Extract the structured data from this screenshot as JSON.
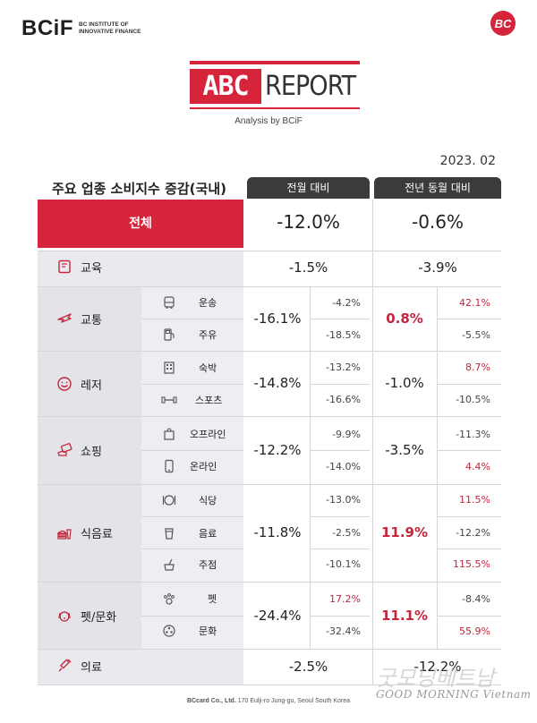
{
  "brand": {
    "logo": "BCiF",
    "sub": "BC INSTITUTE OF INNOVATIVE FINANCE"
  },
  "bc_logo": "BC",
  "report": {
    "abc": "ABC",
    "word": "REPORT",
    "analysis": "Analysis by BCiF"
  },
  "date": "2023. 02",
  "table": {
    "title": "주요 업종 소비지수 증감(국내)",
    "col_mom": "전월 대비",
    "col_yoy": "전년 동월 대비",
    "total": {
      "label": "전체",
      "mom": "-12.0%",
      "yoy": "-0.6%"
    },
    "education": {
      "label": "교육",
      "mom": "-1.5%",
      "yoy": "-3.9%"
    },
    "groups": [
      {
        "label": "교통",
        "mom": "-16.1%",
        "yoy": "0.8%",
        "subs": [
          {
            "label": "운송",
            "mom": "-4.2%",
            "yoy": "42.1%"
          },
          {
            "label": "주유",
            "mom": "-18.5%",
            "yoy": "-5.5%"
          }
        ]
      },
      {
        "label": "레저",
        "mom": "-14.8%",
        "yoy": "-1.0%",
        "subs": [
          {
            "label": "숙박",
            "mom": "-13.2%",
            "yoy": "8.7%"
          },
          {
            "label": "스포츠",
            "mom": "-16.6%",
            "yoy": "-10.5%"
          }
        ]
      },
      {
        "label": "쇼핑",
        "mom": "-12.2%",
        "yoy": "-3.5%",
        "subs": [
          {
            "label": "오프라인",
            "mom": "-9.9%",
            "yoy": "-11.3%"
          },
          {
            "label": "온라인",
            "mom": "-14.0%",
            "yoy": "4.4%"
          }
        ]
      },
      {
        "label": "식음료",
        "mom": "-11.8%",
        "yoy": "11.9%",
        "subs": [
          {
            "label": "식당",
            "mom": "-13.0%",
            "yoy": "11.5%"
          },
          {
            "label": "음료",
            "mom": "-2.5%",
            "yoy": "-12.2%"
          },
          {
            "label": "주점",
            "mom": "-10.1%",
            "yoy": "115.5%"
          }
        ]
      },
      {
        "label": "펫/문화",
        "mom": "-24.4%",
        "yoy": "11.1%",
        "subs": [
          {
            "label": "펫",
            "mom": "17.2%",
            "yoy": "-8.4%"
          },
          {
            "label": "문화",
            "mom": "-32.4%",
            "yoy": "55.9%"
          }
        ]
      }
    ],
    "clothing": {
      "label": "의료",
      "mom": "-2.5%",
      "yoy": "-12.2%"
    }
  },
  "footer": {
    "company": "BCcard Co., Ltd.",
    "address": "170 Eulji-ro Jung-gu, Seoul South Korea"
  },
  "watermark": {
    "line1": "굿모닝베트남",
    "line2": "GOOD MORNING Vietnam"
  },
  "colors": {
    "accent": "#d6253a",
    "header": "#3b3b3b",
    "positive": "#c4263d"
  }
}
